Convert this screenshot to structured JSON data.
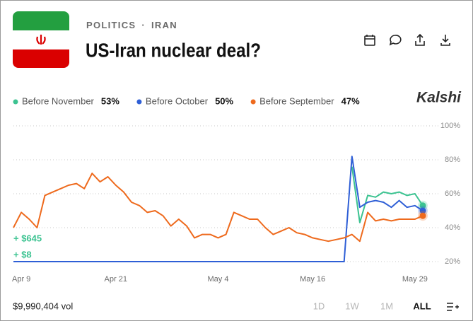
{
  "header": {
    "category": "POLITICS",
    "separator": "·",
    "subcategory": "IRAN",
    "title": "US-Iran nuclear deal?",
    "brand": "Kalshi"
  },
  "chart_data": {
    "type": "line",
    "categories": [
      null,
      "Apr 9",
      null,
      null,
      null,
      null,
      null,
      null,
      null,
      null,
      null,
      null,
      null,
      "Apr 21",
      null,
      null,
      null,
      null,
      null,
      null,
      null,
      null,
      null,
      null,
      null,
      null,
      "May 4",
      null,
      null,
      null,
      null,
      null,
      null,
      null,
      null,
      null,
      null,
      null,
      "May 16",
      null,
      null,
      null,
      null,
      null,
      null,
      null,
      null,
      null,
      null,
      null,
      null,
      "May 29",
      null
    ],
    "series": [
      {
        "name": "Before November",
        "color": "#3cc391",
        "latest": {
          "value": 53,
          "label": "53%"
        },
        "values": [
          null,
          null,
          null,
          null,
          null,
          null,
          null,
          null,
          null,
          null,
          null,
          null,
          null,
          null,
          null,
          null,
          null,
          null,
          null,
          null,
          null,
          null,
          null,
          null,
          null,
          null,
          null,
          null,
          null,
          null,
          null,
          null,
          null,
          null,
          null,
          null,
          null,
          null,
          null,
          null,
          null,
          null,
          null,
          76,
          43,
          59,
          58,
          61,
          60,
          61,
          59,
          60,
          53
        ]
      },
      {
        "name": "Before October",
        "color": "#2f5fd6",
        "latest": {
          "value": 50,
          "label": "50%"
        },
        "values": [
          20,
          20,
          20,
          20,
          20,
          20,
          20,
          20,
          20,
          20,
          20,
          20,
          20,
          20,
          20,
          20,
          20,
          20,
          20,
          20,
          20,
          20,
          20,
          20,
          20,
          20,
          20,
          20,
          20,
          20,
          20,
          20,
          20,
          20,
          20,
          20,
          20,
          20,
          20,
          20,
          20,
          20,
          20,
          82,
          52,
          55,
          56,
          55,
          52,
          56,
          52,
          53,
          50
        ]
      },
      {
        "name": "Before September",
        "color": "#ee6a1d",
        "latest": {
          "value": 47,
          "label": "47%"
        },
        "values": [
          40,
          49,
          45,
          40,
          59,
          61,
          63,
          65,
          66,
          63,
          72,
          67,
          70,
          65,
          61,
          55,
          53,
          49,
          50,
          47,
          41,
          45,
          41,
          34,
          36,
          36,
          34,
          36,
          49,
          47,
          45,
          45,
          40,
          36,
          38,
          40,
          37,
          36,
          34,
          33,
          32,
          33,
          34,
          36,
          32,
          49,
          44,
          45,
          44,
          45,
          45,
          45,
          47
        ]
      }
    ],
    "ylim": [
      20,
      100
    ],
    "yticks": [
      {
        "value": 20,
        "label": "20%"
      },
      {
        "value": 40,
        "label": "40%"
      },
      {
        "value": 60,
        "label": "60%"
      },
      {
        "value": 80,
        "label": "80%"
      },
      {
        "value": 100,
        "label": "100%"
      }
    ],
    "grid": true,
    "annotations": [
      "+ $645",
      "+ $8"
    ]
  },
  "footer": {
    "volume": "$9,990,404 vol",
    "ranges": [
      "1D",
      "1W",
      "1M",
      "ALL"
    ]
  }
}
